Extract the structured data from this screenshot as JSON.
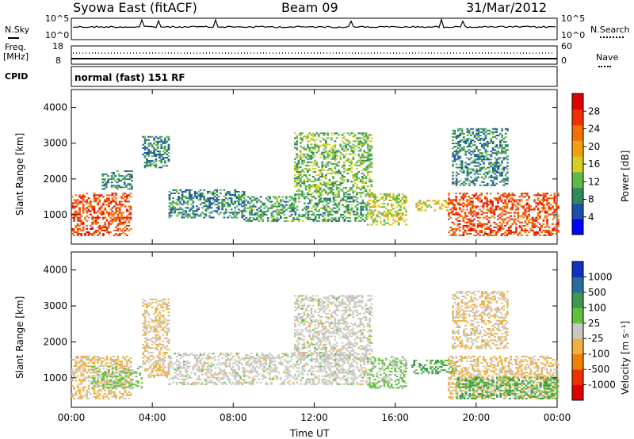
{
  "header": {
    "station": "Syowa East (fitACF)",
    "beam": "Beam 09",
    "date": "31/Mar/2012"
  },
  "status_panels": {
    "nsky_label": "N.Sky",
    "nsearch_label": "N.Search",
    "nsky_ticks": [
      "10^5",
      "10^0"
    ],
    "nsearch_ticks": [
      "10^5",
      "10^0"
    ],
    "freq_label_line1": "Freq.",
    "freq_label_line2": "[MHz]",
    "freq_ticks": [
      "18",
      "8"
    ],
    "nave_label": "Nave",
    "nave_ticks": [
      "60",
      "0"
    ],
    "cpid_label": "CPID",
    "cpid_value": "normal (fast) 151 RF"
  },
  "colors": {
    "power_scale": [
      "#0000ff",
      "#1f4fa8",
      "#2f8a5a",
      "#5fb84a",
      "#d8d020",
      "#f0a010",
      "#f07000",
      "#f03000",
      "#e00000"
    ],
    "velocity_scale": [
      "#e00000",
      "#f03000",
      "#f08000",
      "#f0b040",
      "#c8c8c0",
      "#60c040",
      "#3a9a50",
      "#2a6aa0",
      "#1030c0"
    ],
    "nsky_trace": "#000000"
  },
  "chart_data": [
    {
      "type": "heatmap",
      "title": "",
      "xlabel": "",
      "ylabel": "Slant Range [km]",
      "xlim": [
        "00:00",
        "24:00"
      ],
      "ylim": [
        180,
        4500
      ],
      "x_ticks": [
        "00:00",
        "04:00",
        "08:00",
        "12:00",
        "16:00",
        "20:00",
        "00:00"
      ],
      "y_ticks": [
        1000,
        2000,
        3000,
        4000
      ],
      "colorbar": {
        "label": "Power [dB]",
        "ticks": [
          4,
          8,
          12,
          16,
          20,
          24,
          28
        ],
        "range": [
          0,
          30
        ]
      },
      "regions": [
        {
          "t0": 0.0,
          "t1": 2.9,
          "r0": 400,
          "r1": 1600,
          "value": 24
        },
        {
          "t0": 1.5,
          "t1": 3.0,
          "r0": 1700,
          "r1": 2200,
          "value": 8
        },
        {
          "t0": 3.5,
          "t1": 4.8,
          "r0": 2300,
          "r1": 3200,
          "value": 8
        },
        {
          "t0": 4.8,
          "t1": 8.5,
          "r0": 900,
          "r1": 1700,
          "value": 8
        },
        {
          "t0": 8.5,
          "t1": 14.6,
          "r0": 800,
          "r1": 1500,
          "value": 10
        },
        {
          "t0": 11.0,
          "t1": 14.8,
          "r0": 1500,
          "r1": 3300,
          "value": 12
        },
        {
          "t0": 14.6,
          "t1": 16.5,
          "r0": 700,
          "r1": 1600,
          "value": 14
        },
        {
          "t0": 17.0,
          "t1": 18.6,
          "r0": 1100,
          "r1": 1400,
          "value": 16
        },
        {
          "t0": 18.6,
          "t1": 24.0,
          "r0": 400,
          "r1": 1600,
          "value": 24
        },
        {
          "t0": 18.8,
          "t1": 21.5,
          "r0": 1800,
          "r1": 3400,
          "value": 8
        }
      ]
    },
    {
      "type": "heatmap",
      "title": "",
      "xlabel": "Time UT",
      "ylabel": "Slant Range [km]",
      "xlim": [
        "00:00",
        "24:00"
      ],
      "ylim": [
        180,
        4500
      ],
      "x_ticks": [
        "00:00",
        "04:00",
        "08:00",
        "12:00",
        "16:00",
        "20:00",
        "00:00"
      ],
      "y_ticks": [
        1000,
        2000,
        3000,
        4000
      ],
      "colorbar": {
        "label": "Velocity [m s⁻¹]",
        "ticks": [
          "-1000",
          "-500",
          "-100",
          "-25",
          "25",
          "100",
          "500",
          "1000"
        ],
        "range": [
          -2000,
          2000
        ]
      },
      "regions": [
        {
          "t0": 0.0,
          "t1": 2.9,
          "r0": 400,
          "r1": 1600,
          "value": -300
        },
        {
          "t0": 1.0,
          "t1": 3.5,
          "r0": 700,
          "r1": 1300,
          "value": 300
        },
        {
          "t0": 3.5,
          "t1": 4.8,
          "r0": 1000,
          "r1": 3200,
          "value": -250
        },
        {
          "t0": 4.8,
          "t1": 14.6,
          "r0": 800,
          "r1": 1700,
          "value": 0
        },
        {
          "t0": 11.0,
          "t1": 14.8,
          "r0": 1500,
          "r1": 3300,
          "value": 0
        },
        {
          "t0": 14.6,
          "t1": 16.5,
          "r0": 700,
          "r1": 1600,
          "value": 300
        },
        {
          "t0": 16.8,
          "t1": 19.0,
          "r0": 1100,
          "r1": 1500,
          "value": 700
        },
        {
          "t0": 18.6,
          "t1": 24.0,
          "r0": 400,
          "r1": 1600,
          "value": -300
        },
        {
          "t0": 19.0,
          "t1": 24.0,
          "r0": 400,
          "r1": 1000,
          "value": 700
        },
        {
          "t0": 18.8,
          "t1": 21.5,
          "r0": 1800,
          "r1": 3400,
          "value": -200
        }
      ]
    }
  ]
}
